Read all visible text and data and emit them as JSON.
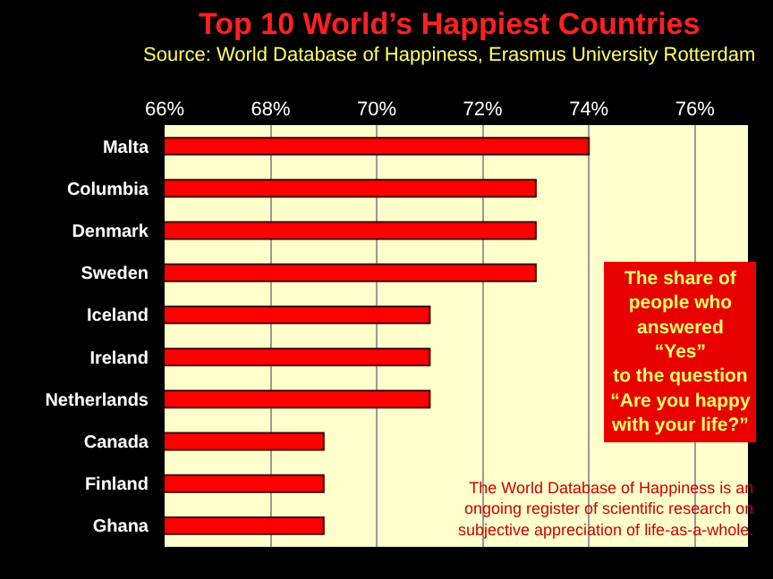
{
  "chart_data": {
    "type": "bar",
    "orientation": "horizontal",
    "title": "Top 10 World’s Happiest Countries",
    "subtitle": "Source: World Database of Happiness, Erasmus University Rotterdam",
    "categories": [
      "Malta",
      "Columbia",
      "Denmark",
      "Sweden",
      "Iceland",
      "Ireland",
      "Netherlands",
      "Canada",
      "Finland",
      "Ghana"
    ],
    "values": [
      74,
      73,
      73,
      73,
      71,
      71,
      71,
      69,
      69,
      69
    ],
    "color": "#ff0000",
    "xlim": [
      66,
      77
    ],
    "xticks": [
      {
        "value": 66,
        "label": "66%"
      },
      {
        "value": 68,
        "label": "68%"
      },
      {
        "value": 70,
        "label": "70%"
      },
      {
        "value": 72,
        "label": "72%"
      },
      {
        "value": 74,
        "label": "74%"
      },
      {
        "value": 76,
        "label": "76%"
      }
    ],
    "grid": "x",
    "legend": false,
    "annotations": [
      "The share of\npeople who\nanswered\n“Yes”\nto the question\n“Are you happy\nwith your life?”",
      "The World Database of Happiness is an\nongoing register of scientific research on\nsubjective appreciation of life-as-a-whole."
    ]
  }
}
